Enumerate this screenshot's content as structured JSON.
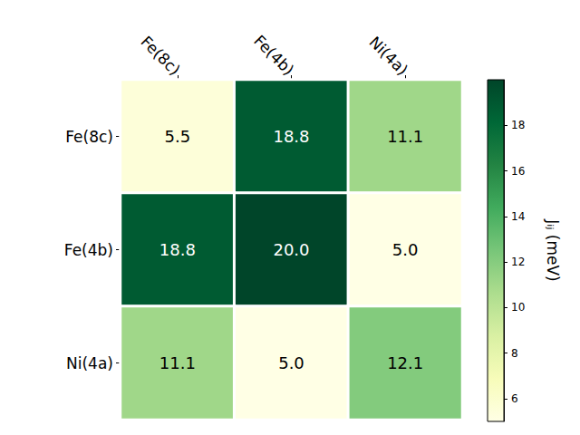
{
  "chart_data": {
    "type": "heatmap",
    "x": [
      "Fe(8c)",
      "Fe(4b)",
      "Ni(4a)"
    ],
    "y": [
      "Fe(8c)",
      "Fe(4b)",
      "Ni(4a)"
    ],
    "values": [
      [
        5.5,
        18.8,
        11.1
      ],
      [
        18.8,
        20.0,
        5.0
      ],
      [
        11.1,
        5.0,
        12.1
      ]
    ],
    "value_labels": [
      [
        "5.5",
        "18.8",
        "11.1"
      ],
      [
        "18.8",
        "20.0",
        "5.0"
      ],
      [
        "11.1",
        "5.0",
        "12.1"
      ]
    ],
    "data_labels": true,
    "colorbar": {
      "label": "Jᵢⱼ (meV)",
      "range": [
        5.0,
        20.0
      ],
      "ticks": [
        6,
        8,
        10,
        12,
        14,
        16,
        18
      ]
    }
  }
}
